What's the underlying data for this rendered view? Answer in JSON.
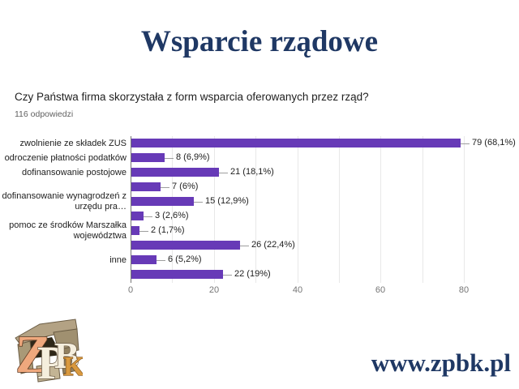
{
  "title": "Wsparcie rządowe",
  "footer": {
    "website": "www.zpbk.pl"
  },
  "logo": {
    "name": "zpbk-stone-logo",
    "letters": "ZPBK"
  },
  "theme": {
    "slide_text_color": "#1f3864",
    "bar_color": "#673ab7"
  },
  "chart_data": {
    "type": "bar",
    "orientation": "horizontal",
    "title": "Czy Państwa firma skorzystała z form wsparcia oferowanych przez rząd?",
    "subtitle": "116 odpowiedzi",
    "categories": [
      "zwolnienie ze składek ZUS",
      "odroczenie płatności podatków",
      "dofinansowanie postojowe",
      "",
      "dofinansowanie wynagrodzeń z\nurzędu pra…",
      "",
      "pomoc ze środków Marszałka\nwojewództwa",
      "",
      "inne",
      ""
    ],
    "values": [
      79,
      8,
      21,
      7,
      15,
      3,
      2,
      26,
      6,
      22
    ],
    "value_labels": [
      "79 (68,1%)",
      "8 (6,9%)",
      "21 (18,1%)",
      "7 (6%)",
      "15 (12,9%)",
      "3 (2,6%)",
      "2 (1,7%)",
      "26 (22,4%)",
      "6 (5,2%)",
      "22 (19%)"
    ],
    "xlim": [
      0,
      85
    ],
    "x_ticks": [
      0,
      20,
      40,
      60,
      80
    ],
    "grid_step": 10,
    "grid": "on",
    "legend": "none",
    "bar_color": "#673ab7",
    "xlabel": "",
    "ylabel": ""
  }
}
